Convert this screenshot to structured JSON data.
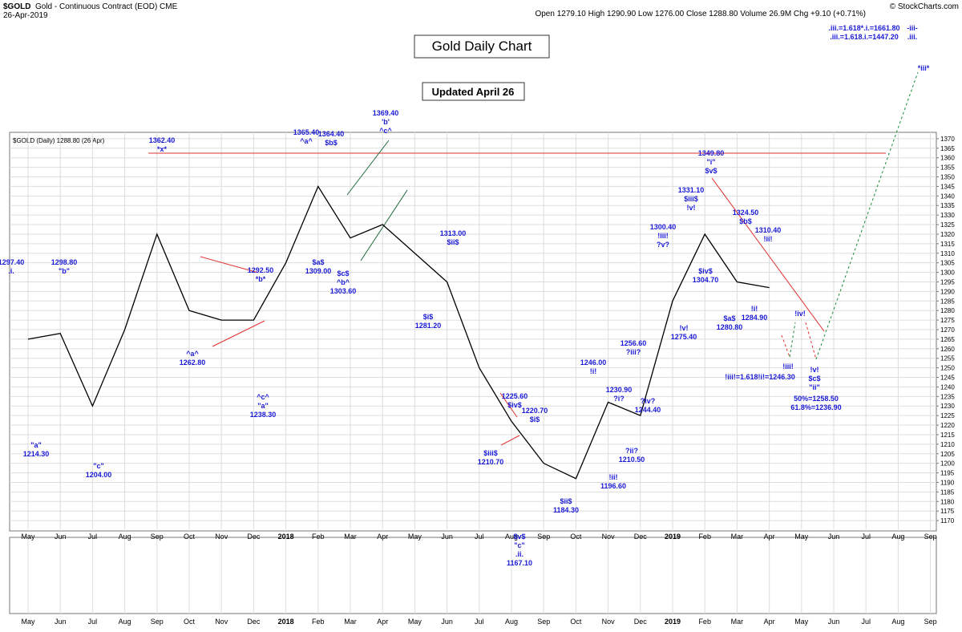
{
  "header": {
    "symbol": "$GOLD",
    "description": "Gold - Continuous Contract (EOD) CME",
    "date": "26-Apr-2019",
    "quote": "Open 1279.10  High 1290.90  Low 1276.00  Close 1288.80  Volume 26.9M  Chg +9.10 (+0.71%)",
    "credit": "© StockCharts.com"
  },
  "chart_data": {
    "type": "line",
    "title": "Gold Daily Chart",
    "subtitle": "Updated April 26",
    "categories": [
      "May",
      "Jun",
      "Jul",
      "Aug",
      "Sep",
      "Oct",
      "Nov",
      "Dec",
      "2018",
      "Feb",
      "Mar",
      "Apr",
      "May",
      "Jun",
      "Jul",
      "Aug",
      "Sep",
      "Oct",
      "Nov",
      "Dec",
      "2019",
      "Feb",
      "Mar",
      "Apr",
      "May",
      "Jun",
      "Jul",
      "Aug",
      "Sep"
    ],
    "series": [
      {
        "name": "$GOLD (Daily) 1288.80 (26 Apr)",
        "color": "#000000",
        "values": [
          1265,
          1268,
          1230,
          1270,
          1320,
          1280,
          1275,
          1275,
          1305,
          1345,
          1318,
          1325,
          1310,
          1295,
          1250,
          1222,
          1200,
          1192,
          1232,
          1225,
          1285,
          1320,
          1295,
          1292,
          null,
          null,
          null,
          null,
          null
        ]
      }
    ],
    "ylim": [
      1165,
      1375
    ],
    "yticks": [
      1170,
      1175,
      1180,
      1185,
      1190,
      1195,
      1200,
      1205,
      1210,
      1215,
      1220,
      1225,
      1230,
      1235,
      1240,
      1245,
      1250,
      1255,
      1260,
      1265,
      1270,
      1275,
      1280,
      1285,
      1290,
      1295,
      1300,
      1305,
      1310,
      1315,
      1320,
      1325,
      1330,
      1335,
      1340,
      1345,
      1350,
      1355,
      1360,
      1365,
      1370
    ],
    "grid": true,
    "annotations": [
      {
        "lines": [
          "1297.40",
          ".i."
        ]
      },
      {
        "lines": [
          "1298.80",
          "\"b\""
        ]
      },
      {
        "lines": [
          "\"a\"",
          "1214.30"
        ]
      },
      {
        "lines": [
          "\"c\"",
          "1204.00"
        ]
      },
      {
        "lines": [
          "1362.40",
          "*x*"
        ]
      },
      {
        "lines": [
          "^a^",
          "1262.80"
        ]
      },
      {
        "lines": [
          "1292.50",
          "*b*"
        ]
      },
      {
        "lines": [
          "^c^",
          "\"a\"",
          "1238.30"
        ]
      },
      {
        "lines": [
          "1365.40",
          "^a^"
        ]
      },
      {
        "lines": [
          "1364.40",
          "$b$"
        ]
      },
      {
        "lines": [
          "1369.40",
          "'b'",
          "^c^"
        ]
      },
      {
        "lines": [
          "$a$",
          "1309.00"
        ]
      },
      {
        "lines": [
          "$c$",
          "^b^",
          "1303.60"
        ]
      },
      {
        "lines": [
          "1313.00",
          "$ii$"
        ]
      },
      {
        "lines": [
          "$i$",
          "1281.20"
        ]
      },
      {
        "lines": [
          "1225.60",
          "$iv$"
        ]
      },
      {
        "lines": [
          "1220.70",
          "$i$"
        ]
      },
      {
        "lines": [
          "$iii$",
          "1210.70"
        ]
      },
      {
        "lines": [
          "$v$",
          "\"c\"",
          ".ii.",
          "1167.10"
        ]
      },
      {
        "lines": [
          "$ii$",
          "1184.30"
        ]
      },
      {
        "lines": [
          "1246.00",
          "!i!"
        ]
      },
      {
        "lines": [
          "1230.90",
          "?i?"
        ]
      },
      {
        "lines": [
          "!ii!",
          "1196.60"
        ]
      },
      {
        "lines": [
          "?ii?",
          "1210.50"
        ]
      },
      {
        "lines": [
          "1256.60",
          "?iii?"
        ]
      },
      {
        "lines": [
          "?iv?",
          "1244.40"
        ]
      },
      {
        "lines": [
          "1300.40",
          "!iii!",
          "?v?"
        ]
      },
      {
        "lines": [
          "!v!",
          "1275.40"
        ]
      },
      {
        "lines": [
          "1331.10",
          "$iii$",
          "!v!"
        ]
      },
      {
        "lines": [
          "1349.80",
          "\"i\"",
          "$v$"
        ]
      },
      {
        "lines": [
          "$iv$",
          "1304.70"
        ]
      },
      {
        "lines": [
          "1324.50",
          "$b$"
        ]
      },
      {
        "lines": [
          "1310.40",
          "!ii!"
        ]
      },
      {
        "lines": [
          "$a$",
          "1280.80"
        ]
      },
      {
        "lines": [
          "!i!",
          "1284.90"
        ]
      },
      {
        "lines": [
          "!iii!"
        ]
      },
      {
        "lines": [
          "!iv!"
        ]
      },
      {
        "lines": [
          "!iii!=1.618!i!=1246.30"
        ]
      },
      {
        "lines": [
          "!v!",
          "$c$",
          "\"ii\""
        ]
      },
      {
        "lines": [
          "50%=1258.50",
          "61.8%=1236.90"
        ]
      },
      {
        "lines": [
          ".iii.=1.618*.i.=1661.80",
          ".iii.=1.618.i.=1447.20"
        ]
      },
      {
        "lines": [
          "-iii-",
          ".iii."
        ]
      },
      {
        "lines": [
          "*iii*"
        ]
      }
    ]
  }
}
